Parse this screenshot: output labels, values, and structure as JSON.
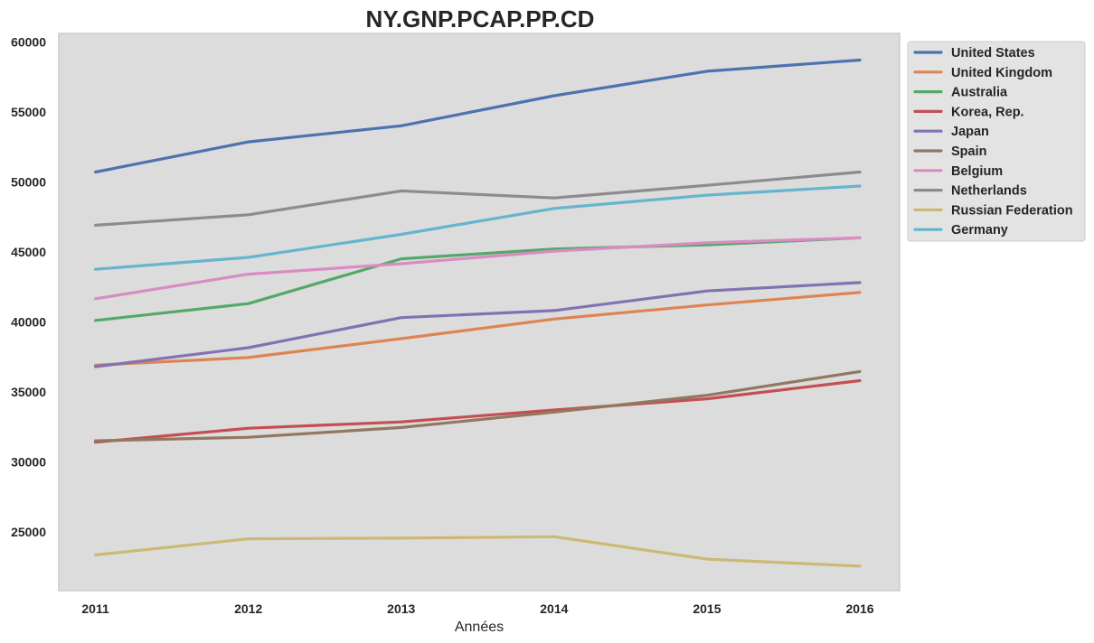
{
  "chart_data": {
    "type": "line",
    "title": "NY.GNP.PCAP.PP.CD",
    "xlabel": "Années",
    "ylabel": "",
    "x": [
      2011,
      2012,
      2013,
      2014,
      2015,
      2016
    ],
    "x_ticks": [
      "2011",
      "2012",
      "2013",
      "2014",
      "2015",
      "2016"
    ],
    "xlim": [
      2010.76,
      2016.26
    ],
    "ylim": [
      20800,
      60600
    ],
    "y_ticks": [
      25000,
      30000,
      35000,
      40000,
      45000,
      50000,
      55000,
      60000
    ],
    "y_tick_labels": [
      "25000",
      "30000",
      "35000",
      "40000",
      "45000",
      "50000",
      "55000",
      "60000"
    ],
    "grid": false,
    "legend_position": "outside-top-right",
    "plot_background": "#dcdcdc",
    "series": [
      {
        "name": "United States",
        "color": "#4c72b0",
        "values": [
          50700,
          52850,
          54000,
          56150,
          57900,
          58700
        ]
      },
      {
        "name": "United Kingdom",
        "color": "#dd8452",
        "values": [
          36900,
          37450,
          38800,
          40200,
          41200,
          42100
        ]
      },
      {
        "name": "Australia",
        "color": "#55a868",
        "values": [
          40100,
          41300,
          44500,
          45200,
          45500,
          46000
        ]
      },
      {
        "name": "Korea, Rep.",
        "color": "#c44e52",
        "values": [
          31400,
          32400,
          32850,
          33700,
          34500,
          35800
        ]
      },
      {
        "name": "Japan",
        "color": "#8172b3",
        "values": [
          36800,
          38150,
          40300,
          40800,
          42200,
          42800
        ]
      },
      {
        "name": "Spain",
        "color": "#937860",
        "values": [
          31500,
          31750,
          32450,
          33550,
          34750,
          36450
        ]
      },
      {
        "name": "Belgium",
        "color": "#da8bc3",
        "values": [
          41650,
          43400,
          44150,
          45050,
          45650,
          46000
        ]
      },
      {
        "name": "Netherlands",
        "color": "#8c8c8c",
        "values": [
          46900,
          47650,
          49350,
          48850,
          49750,
          50700
        ]
      },
      {
        "name": "Russian Federation",
        "color": "#ccb974",
        "values": [
          23350,
          24500,
          24550,
          24650,
          23050,
          22550
        ]
      },
      {
        "name": "Germany",
        "color": "#64b5cd",
        "values": [
          43750,
          44600,
          46250,
          48100,
          49050,
          49700
        ]
      }
    ]
  }
}
